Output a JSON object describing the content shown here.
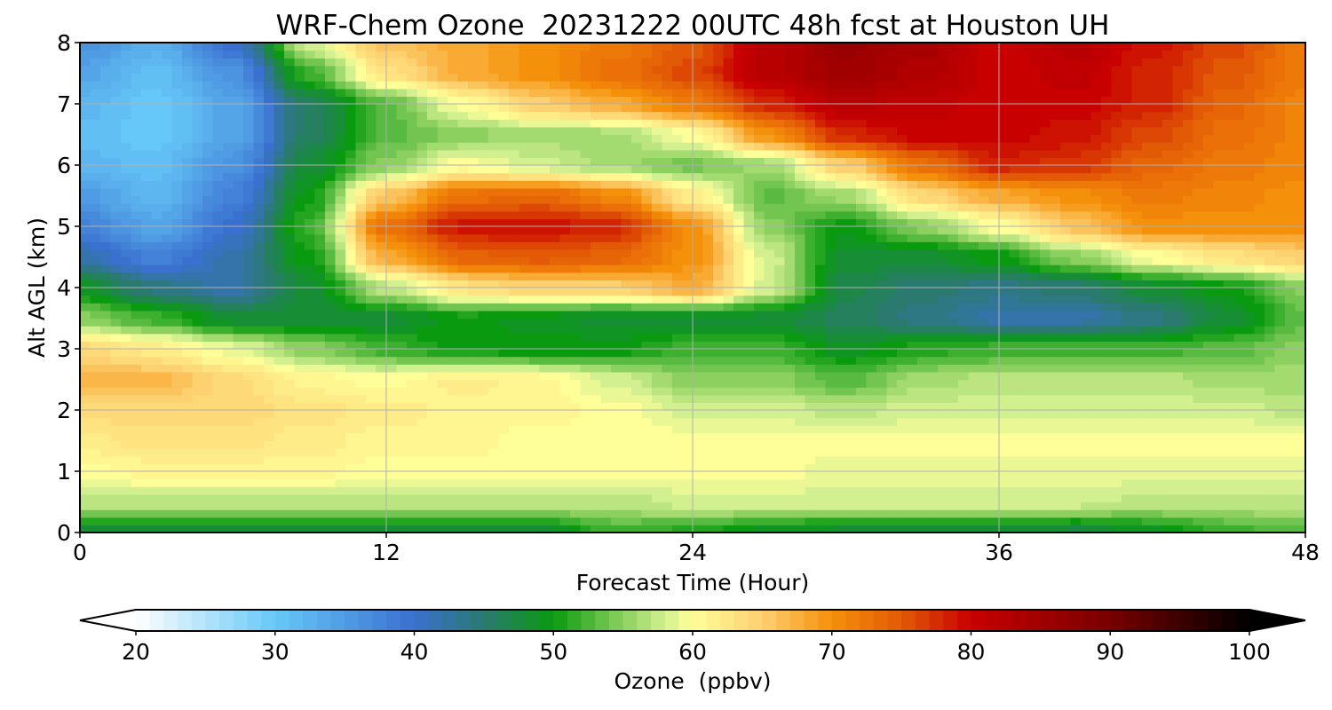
{
  "chart_data": {
    "type": "heatmap",
    "title": "WRF-Chem Ozone  20231222 00UTC 48h fcst at Houston UH",
    "xlabel": "Forecast Time (Hour)",
    "ylabel": "Alt AGL (km)",
    "x_ticks": [
      0,
      12,
      24,
      36,
      48
    ],
    "y_ticks": [
      0,
      1,
      2,
      3,
      4,
      5,
      6,
      7,
      8
    ],
    "xlim": [
      0,
      48
    ],
    "ylim": [
      0,
      8
    ],
    "grid": true,
    "colorbar": {
      "label": "Ozone  (ppbv)",
      "min": 20,
      "max": 100,
      "ticks": [
        20,
        30,
        40,
        50,
        60,
        70,
        80,
        90,
        100
      ],
      "extend": "both",
      "stops": [
        {
          "value": 20,
          "color": "#ffffff"
        },
        {
          "value": 30,
          "color": "#66c8f8"
        },
        {
          "value": 40,
          "color": "#3a70d0"
        },
        {
          "value": 45,
          "color": "#2a7a70"
        },
        {
          "value": 50,
          "color": "#0a9a10"
        },
        {
          "value": 55,
          "color": "#8cd060"
        },
        {
          "value": 58,
          "color": "#d2f090"
        },
        {
          "value": 60,
          "color": "#ffff99"
        },
        {
          "value": 65,
          "color": "#fdd070"
        },
        {
          "value": 70,
          "color": "#f5900a"
        },
        {
          "value": 75,
          "color": "#e25a05"
        },
        {
          "value": 80,
          "color": "#c80000"
        },
        {
          "value": 90,
          "color": "#780000"
        },
        {
          "value": 100,
          "color": "#000000"
        }
      ]
    },
    "data": {
      "x": [
        0,
        3,
        6,
        9,
        12,
        15,
        18,
        21,
        24,
        27,
        30,
        33,
        36,
        39,
        42,
        45,
        48
      ],
      "y": [
        0,
        0.5,
        1,
        1.5,
        2,
        2.5,
        3,
        3.5,
        4,
        4.5,
        5,
        5.5,
        6,
        6.5,
        7,
        7.5,
        8
      ],
      "z": [
        [
          48,
          48,
          48,
          48,
          48,
          48,
          48,
          52,
          51,
          49,
          48,
          48,
          48,
          47,
          49,
          52,
          53
        ],
        [
          57,
          57,
          57,
          57,
          57,
          57,
          57,
          57,
          58,
          58,
          58,
          58,
          58,
          58,
          57,
          57,
          57
        ],
        [
          60,
          61,
          61,
          61,
          60,
          60,
          60,
          60,
          60,
          60,
          59,
          59,
          59,
          59,
          59,
          59,
          59
        ],
        [
          62,
          63,
          63,
          62,
          61,
          61,
          60,
          60,
          60,
          60,
          60,
          60,
          60,
          60,
          60,
          60,
          60
        ],
        [
          64,
          64,
          64,
          63,
          62,
          61,
          61,
          60,
          58,
          58,
          57,
          58,
          58,
          58,
          58,
          58,
          57
        ],
        [
          67,
          67,
          64,
          61,
          60,
          62,
          61,
          58,
          55,
          55,
          53,
          56,
          57,
          57,
          57,
          56,
          56
        ],
        [
          64,
          62,
          59,
          55,
          52,
          50,
          50,
          50,
          52,
          52,
          49,
          51,
          52,
          52,
          52,
          53,
          55
        ],
        [
          55,
          52,
          48,
          48,
          48,
          50,
          49,
          48,
          48,
          48,
          46,
          44,
          42,
          42,
          44,
          48,
          53
        ],
        [
          49,
          44,
          42,
          48,
          57,
          63,
          65,
          65,
          68,
          58,
          47,
          45,
          44,
          45,
          48,
          50,
          55
        ],
        [
          42,
          38,
          42,
          50,
          68,
          74,
          75,
          74,
          70,
          58,
          48,
          48,
          50,
          55,
          60,
          63,
          65
        ],
        [
          38,
          34,
          40,
          52,
          73,
          79,
          79,
          78,
          70,
          55,
          50,
          55,
          60,
          66,
          70,
          70,
          70
        ],
        [
          35,
          32,
          38,
          50,
          66,
          73,
          74,
          71,
          62,
          53,
          56,
          64,
          68,
          70,
          72,
          71,
          70
        ],
        [
          32,
          31,
          36,
          48,
          55,
          60,
          58,
          56,
          54,
          56,
          65,
          73,
          78,
          77,
          74,
          72,
          71
        ],
        [
          31,
          30,
          34,
          46,
          53,
          55,
          56,
          56,
          60,
          70,
          78,
          80,
          80,
          79,
          76,
          73,
          71
        ],
        [
          32,
          30,
          34,
          46,
          53,
          60,
          65,
          68,
          72,
          78,
          82,
          81,
          80,
          80,
          78,
          74,
          71
        ],
        [
          34,
          31,
          36,
          52,
          63,
          68,
          70,
          73,
          76,
          82,
          85,
          83,
          80,
          81,
          78,
          75,
          72
        ],
        [
          36,
          33,
          40,
          58,
          66,
          68,
          70,
          72,
          75,
          82,
          86,
          84,
          80,
          82,
          79,
          76,
          72
        ]
      ]
    }
  }
}
